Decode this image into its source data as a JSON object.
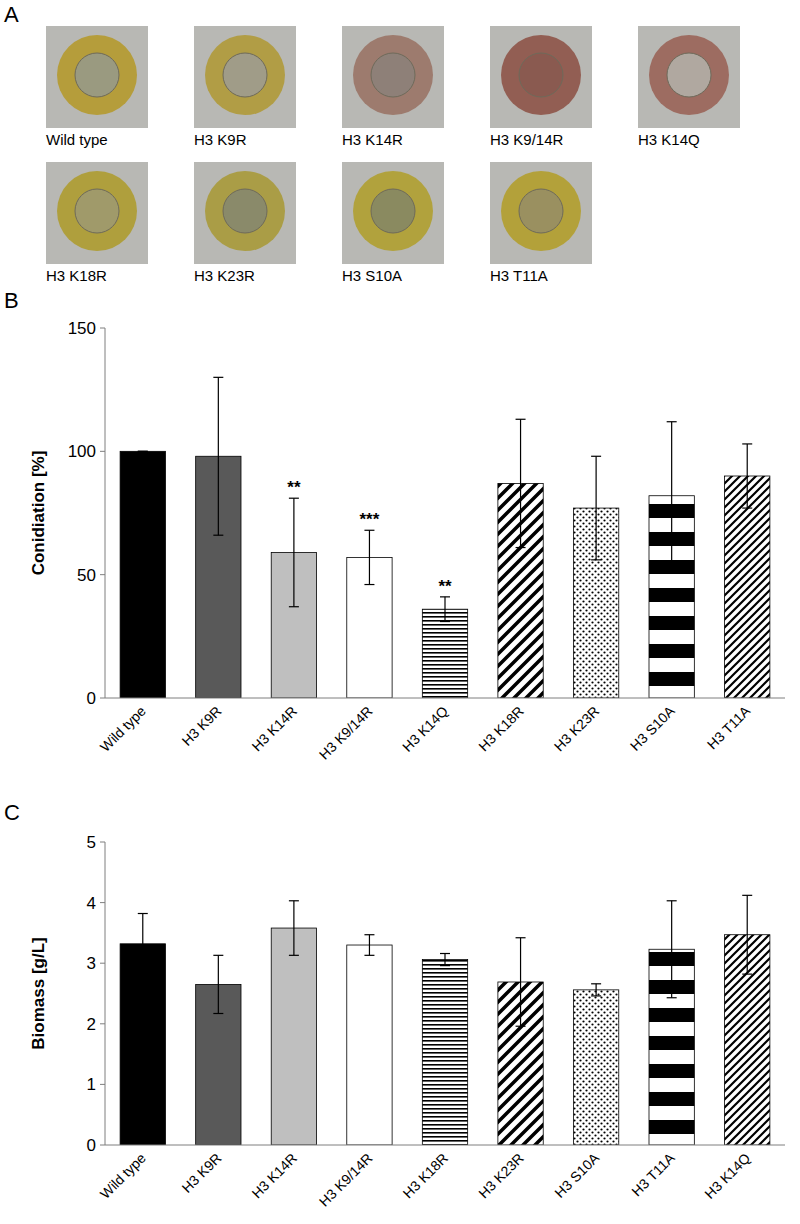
{
  "panel_a": {
    "panel_label": "A",
    "images": [
      "Wild type",
      "H3 K9R",
      "H3 K14R",
      "H3 K9/14R",
      "H3 K14Q",
      "H3 K18R",
      "H3 K23R",
      "H3 S10A",
      "H3 T11A"
    ]
  },
  "chart_data": [
    {
      "type": "bar",
      "panel_label": "B",
      "y_label": "Conidiation [%]",
      "categories": [
        "Wild type",
        "H3 K9R",
        "H3 K14R",
        "H3 K9/14R",
        "H3 K14Q",
        "H3 K18R",
        "H3 K23R",
        "H3 S10A",
        "H3 T11A"
      ],
      "values": [
        100,
        98,
        59,
        57,
        36,
        87,
        77,
        82,
        90
      ],
      "errors": [
        0,
        32,
        22,
        11,
        5,
        26,
        21,
        30,
        13
      ],
      "significance": [
        null,
        null,
        "**",
        "***",
        "**",
        null,
        null,
        null,
        null
      ],
      "ylim": [
        0,
        150
      ],
      "yticks": [
        0,
        50,
        100,
        150
      ],
      "grid": false
    },
    {
      "type": "bar",
      "panel_label": "C",
      "y_label": "Biomass [g/L]",
      "categories": [
        "Wild type",
        "H3 K9R",
        "H3 K14R",
        "H3 K9/14R",
        "H3 K18R",
        "H3 K23R",
        "H3 S10A",
        "H3 T11A",
        "H3 K14Q"
      ],
      "values": [
        3.32,
        2.65,
        3.58,
        3.3,
        3.06,
        2.69,
        2.56,
        3.23,
        3.47
      ],
      "errors": [
        0.5,
        0.48,
        0.45,
        0.17,
        0.1,
        0.73,
        0.1,
        0.8,
        0.65
      ],
      "ylim": [
        0,
        5
      ],
      "yticks": [
        0,
        1,
        2,
        3,
        4,
        5
      ],
      "grid": false
    }
  ]
}
